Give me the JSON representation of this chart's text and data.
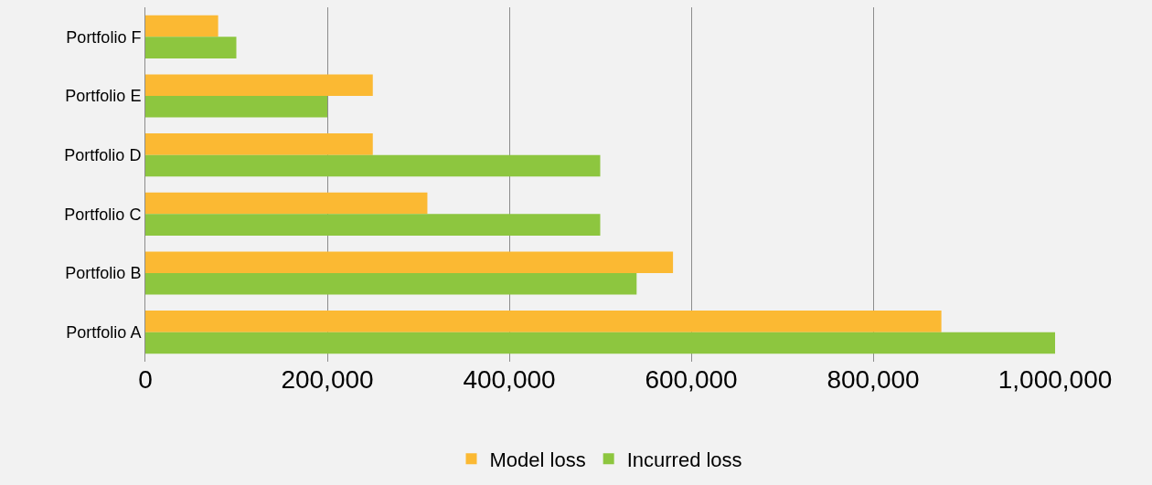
{
  "chart_data": {
    "type": "bar",
    "orientation": "horizontal",
    "categories": [
      "Portfolio F",
      "Portfolio E",
      "Portfolio D",
      "Portfolio C",
      "Portfolio B",
      "Portfolio A"
    ],
    "series": [
      {
        "name": "Model loss",
        "color": "#fbb933",
        "values": [
          80000,
          250000,
          250000,
          310000,
          580000,
          875000
        ]
      },
      {
        "name": "Incurred loss",
        "color": "#8dc63f",
        "values": [
          100000,
          200000,
          500000,
          500000,
          540000,
          1000000
        ]
      }
    ],
    "xlim": [
      0,
      1000000
    ],
    "xticks": [
      0,
      {
        "value": 200000,
        "label": "200,000"
      },
      {
        "value": 400000,
        "label": "400,000"
      },
      {
        "value": 600000,
        "label": "600,000"
      },
      {
        "value": 800000,
        "label": "800,000"
      },
      {
        "value": 1000000,
        "label": "1,000,000"
      }
    ],
    "grid": "x",
    "legend": "bottom"
  }
}
